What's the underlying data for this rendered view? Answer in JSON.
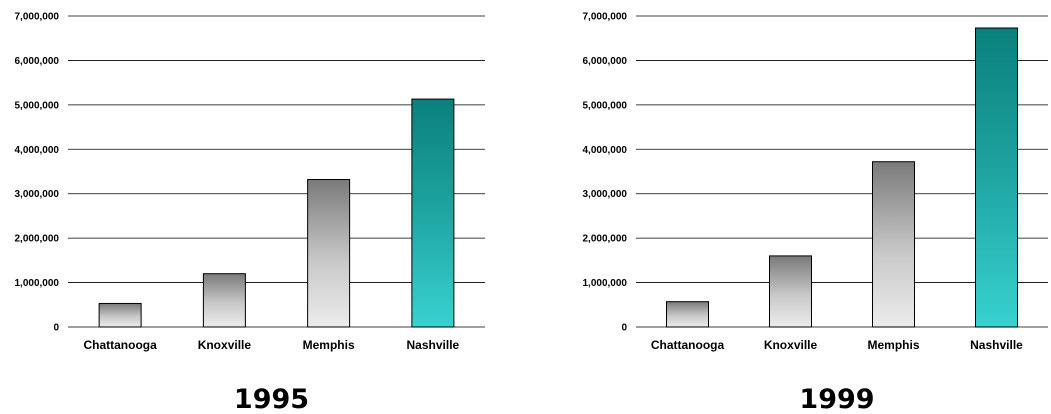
{
  "chart_data": [
    {
      "type": "bar",
      "title": "1995",
      "categories": [
        "Chattanooga",
        "Knoxville",
        "Memphis",
        "Nashville"
      ],
      "values": [
        530000,
        1200000,
        3320000,
        5130000
      ],
      "ylim": [
        0,
        7000000
      ],
      "yticks": [
        "0",
        "1,000,000",
        "2,000,000",
        "3,000,000",
        "4,000,000",
        "5,000,000",
        "6,000,000",
        "7,000,000"
      ],
      "grid": true,
      "legend": "none",
      "colors": {
        "default": "#808080",
        "highlight": "#0a807c"
      }
    },
    {
      "type": "bar",
      "title": "1999",
      "categories": [
        "Chattanooga",
        "Knoxville",
        "Memphis",
        "Nashville"
      ],
      "values": [
        570000,
        1600000,
        3720000,
        6730000
      ],
      "ylim": [
        0,
        7000000
      ],
      "yticks": [
        "0",
        "1,000,000",
        "2,000,000",
        "3,000,000",
        "4,000,000",
        "5,000,000",
        "6,000,000",
        "7,000,000"
      ],
      "grid": true,
      "legend": "none",
      "colors": {
        "default": "#808080",
        "highlight": "#0a807c"
      }
    }
  ]
}
